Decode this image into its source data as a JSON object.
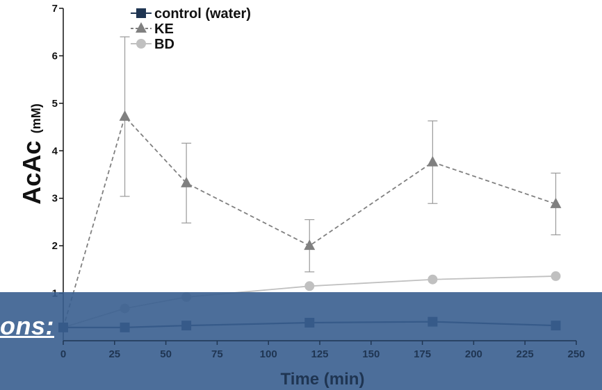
{
  "chart_data": {
    "type": "line",
    "xlabel": "Time (min)",
    "ylabel": "AcAc",
    "ylabel_unit": "(mM)",
    "xlim": [
      0,
      250
    ],
    "ylim": [
      0,
      7
    ],
    "x_ticks": [
      "0",
      "25",
      "50",
      "75",
      "100",
      "125",
      "150",
      "175",
      "200",
      "225",
      "250"
    ],
    "y_ticks": [
      "1",
      "2",
      "3",
      "4",
      "5",
      "6",
      "7"
    ],
    "grid": false,
    "legend_position": "top-center",
    "series": [
      {
        "name": "control (water)",
        "marker": "square",
        "line": "solid",
        "color": "#1f3552",
        "x": [
          0,
          30,
          60,
          120,
          180,
          240
        ],
        "y": [
          0.28,
          0.28,
          0.32,
          0.38,
          0.4,
          0.32
        ],
        "err": [
          0,
          0,
          0,
          0,
          0,
          0
        ]
      },
      {
        "name": "KE",
        "marker": "triangle",
        "line": "dashed",
        "color": "#808080",
        "x": [
          0,
          30,
          60,
          120,
          180,
          240
        ],
        "y": [
          0.28,
          4.72,
          3.32,
          2.0,
          3.76,
          2.88
        ],
        "err": [
          0,
          1.68,
          0.84,
          0.55,
          0.87,
          0.65
        ]
      },
      {
        "name": "BD",
        "marker": "circle",
        "line": "solid",
        "color": "#c0c0c0",
        "x": [
          0,
          30,
          60,
          120,
          180,
          240
        ],
        "y": [
          0.28,
          0.68,
          0.92,
          1.15,
          1.29,
          1.36
        ],
        "err": [
          0,
          0,
          0,
          0,
          0,
          0
        ]
      }
    ]
  },
  "overlay": {
    "text": "ons:",
    "color": "#395e8f"
  }
}
